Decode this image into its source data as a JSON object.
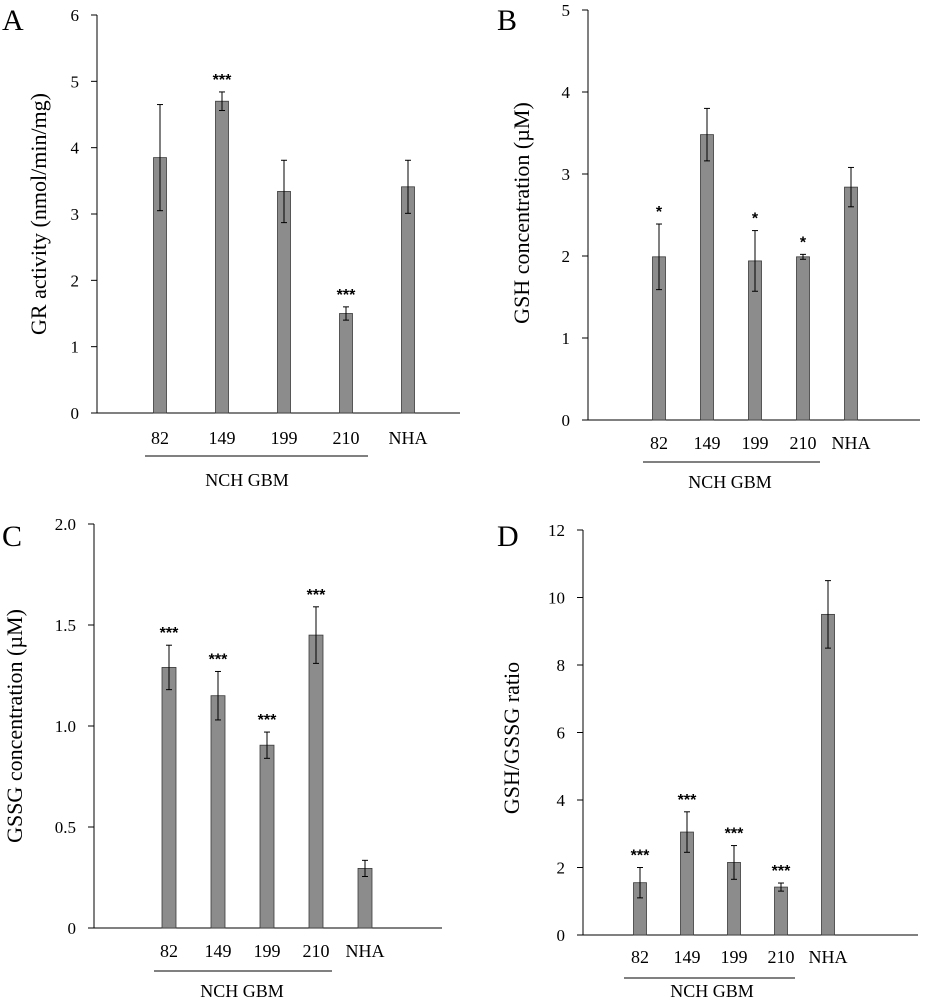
{
  "colors": {
    "bar": "#8c8c8c",
    "axis": "#000000",
    "error": "#000000"
  },
  "chart_data": [
    {
      "type": "bar",
      "panel": "A",
      "ylabel": "GR activity (nmol/min/mg)",
      "categories": [
        "82",
        "149",
        "199",
        "210",
        "NHA"
      ],
      "group_label": "NCH GBM",
      "values": [
        3.85,
        4.7,
        3.34,
        1.5,
        3.41
      ],
      "errors": [
        0.8,
        0.14,
        0.47,
        0.1,
        0.4
      ],
      "significance": [
        "",
        "***",
        "",
        "***",
        ""
      ],
      "ylim": [
        0,
        6
      ],
      "yticks": [
        0,
        1,
        2,
        3,
        4,
        5,
        6
      ],
      "tick_labels": [
        "0",
        "1",
        "2",
        "3",
        "4",
        "5",
        "6"
      ]
    },
    {
      "type": "bar",
      "panel": "B",
      "ylabel": "GSH concentration (µM)",
      "categories": [
        "82",
        "149",
        "199",
        "210",
        "NHA"
      ],
      "group_label": "NCH GBM",
      "values": [
        1.99,
        3.48,
        1.94,
        1.99,
        2.84
      ],
      "errors": [
        0.4,
        0.32,
        0.37,
        0.03,
        0.24
      ],
      "significance": [
        "*",
        "",
        "*",
        "*",
        ""
      ],
      "ylim": [
        0,
        5
      ],
      "yticks": [
        0,
        1,
        2,
        3,
        4,
        5
      ],
      "tick_labels": [
        "0",
        "1",
        "2",
        "3",
        "4",
        "5"
      ]
    },
    {
      "type": "bar",
      "panel": "C",
      "ylabel": "GSSG concentration (µM)",
      "categories": [
        "82",
        "149",
        "199",
        "210",
        "NHA"
      ],
      "group_label": "NCH GBM",
      "values": [
        1.29,
        1.15,
        0.905,
        1.45,
        0.295
      ],
      "errors": [
        0.11,
        0.12,
        0.065,
        0.14,
        0.04
      ],
      "significance": [
        "***",
        "***",
        "***",
        "***",
        ""
      ],
      "ylim": [
        0,
        2.0
      ],
      "yticks": [
        0,
        0.5,
        1.0,
        1.5,
        2.0
      ],
      "tick_labels": [
        "0",
        "0.5",
        "1.0",
        "1.5",
        "2.0"
      ]
    },
    {
      "type": "bar",
      "panel": "D",
      "ylabel": "GSH/GSSG ratio",
      "categories": [
        "82",
        "149",
        "199",
        "210",
        "NHA"
      ],
      "group_label": "NCH GBM",
      "values": [
        1.55,
        3.05,
        2.15,
        1.42,
        9.5
      ],
      "errors": [
        0.45,
        0.6,
        0.5,
        0.12,
        1.0
      ],
      "significance": [
        "***",
        "***",
        "***",
        "***",
        ""
      ],
      "ylim": [
        0,
        12
      ],
      "yticks": [
        0,
        2,
        4,
        6,
        8,
        10,
        12
      ],
      "tick_labels": [
        "0",
        "2",
        "4",
        "6",
        "8",
        "10",
        "12"
      ]
    }
  ]
}
